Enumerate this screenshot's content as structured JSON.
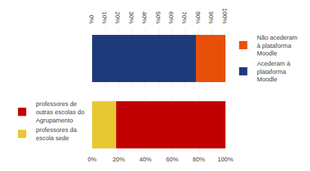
{
  "chart_data": [
    {
      "type": "bar",
      "orientation": "horizontal",
      "stacked": true,
      "categories": [
        null
      ],
      "series": [
        {
          "name": "Acederam à\nplataforma\nMoodle",
          "color": "#1F3A7A",
          "values": [
            78
          ]
        },
        {
          "name": "Não acederam\nà plataforma\nMoodle",
          "color": "#E8500A",
          "values": [
            22
          ]
        }
      ],
      "xlim": [
        0,
        100
      ],
      "xticks": [
        {
          "value": 0,
          "label": "0%"
        },
        {
          "value": 10,
          "label": "10%"
        },
        {
          "value": 20,
          "label": "20%"
        },
        {
          "value": 30,
          "label": "30%"
        },
        {
          "value": 40,
          "label": "40%"
        },
        {
          "value": 50,
          "label": "50%"
        },
        {
          "value": 60,
          "label": "60%"
        },
        {
          "value": 70,
          "label": "70%"
        },
        {
          "value": 80,
          "label": "80%"
        },
        {
          "value": 90,
          "label": "90%"
        },
        {
          "value": 100,
          "label": "100%"
        }
      ],
      "grid": true,
      "legend": "right"
    },
    {
      "type": "bar",
      "orientation": "horizontal",
      "stacked": true,
      "categories": [
        null
      ],
      "series": [
        {
          "name": "professores da\nescola sede",
          "color": "#E8C832",
          "values": [
            18
          ]
        },
        {
          "name": "professores de\noutras escolas do\nAgrupamento",
          "color": "#C00000",
          "values": [
            82
          ]
        }
      ],
      "xlim": [
        0,
        100
      ],
      "xticks": [
        {
          "value": 0,
          "label": "0%"
        },
        {
          "value": 20,
          "label": "20%"
        },
        {
          "value": 40,
          "label": "40%"
        },
        {
          "value": 60,
          "label": "60%"
        },
        {
          "value": 80,
          "label": "80%"
        },
        {
          "value": 100,
          "label": "100%"
        }
      ],
      "grid": true,
      "legend": "left"
    }
  ]
}
